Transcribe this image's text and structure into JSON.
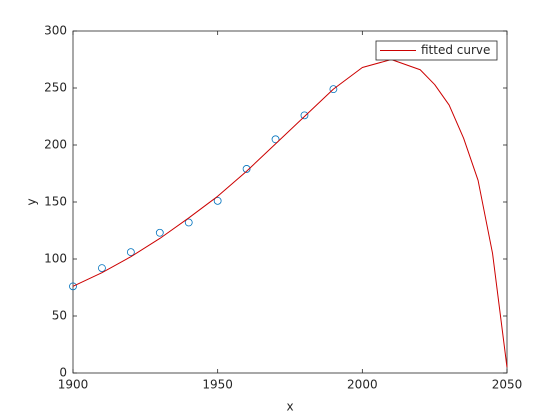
{
  "chart_data": {
    "type": "line",
    "xlabel": "x",
    "ylabel": "y",
    "xlim": [
      1900,
      2050
    ],
    "xticks": [
      1900,
      1950,
      2000,
      2050
    ],
    "ylim": [
      0,
      300
    ],
    "yticks": [
      0,
      50,
      100,
      150,
      200,
      250,
      300
    ],
    "legend": "top-right",
    "series": [
      {
        "mode": "markers",
        "marker": "circle",
        "color": "#0072bd",
        "x": [
          1900,
          1910,
          1920,
          1930,
          1940,
          1950,
          1960,
          1970,
          1980,
          1990
        ],
        "values": [
          76,
          92,
          106,
          123,
          132,
          151,
          179,
          205,
          226,
          249
        ]
      },
      {
        "name": "fitted curve",
        "mode": "line",
        "color": "#cc0000",
        "x": [
          1900,
          1910,
          1920,
          1930,
          1940,
          1950,
          1960,
          1970,
          1980,
          1990,
          2000,
          2010,
          2020,
          2025,
          2030,
          2035,
          2040,
          2045,
          2050
        ],
        "values": [
          76,
          88,
          102,
          118,
          136,
          155,
          177,
          201,
          225,
          249,
          268,
          275,
          266,
          253,
          235,
          206,
          169,
          105,
          5
        ]
      }
    ]
  }
}
